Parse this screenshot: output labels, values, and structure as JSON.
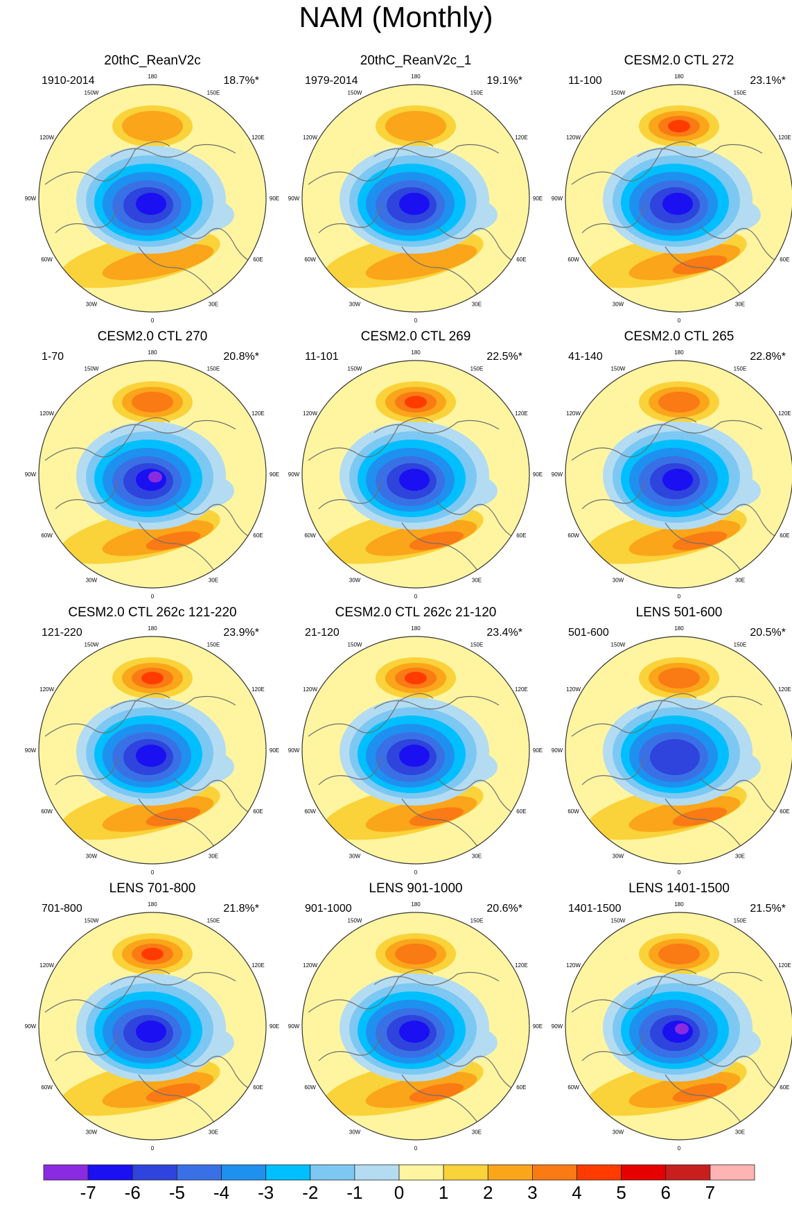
{
  "figure": {
    "title": "NAM (Monthly)",
    "colors": {
      "yellow": "#fff5a0",
      "pale_blue": "#b3dcf2",
      "coast": "#6e6e6e",
      "frame": "#333333"
    },
    "longitude_labels": [
      "180",
      "150E",
      "120E",
      "90E",
      "60E",
      "30E",
      "0",
      "30W",
      "60W",
      "90W",
      "120W",
      "150W"
    ],
    "colorbar": {
      "ticks": [
        "-7",
        "-6",
        "-5",
        "-4",
        "-3",
        "-2",
        "-1",
        "0",
        "1",
        "2",
        "3",
        "4",
        "5",
        "6",
        "7"
      ],
      "colors": [
        "#8a2be2",
        "#1a10f2",
        "#2e44dc",
        "#3a70e6",
        "#1e90f0",
        "#00bfff",
        "#7cc8f2",
        "#b3dcf2",
        "#fff5a0",
        "#fad23a",
        "#faa51a",
        "#fa7a14",
        "#ff3b00",
        "#e60000",
        "#c81e1e",
        "#ffb4b4"
      ]
    },
    "panels": [
      {
        "title": "20thC_ReanV2c",
        "period": "1910-2014",
        "variance": "18.7%*",
        "pos": 2,
        "neg": 6
      },
      {
        "title": "20thC_ReanV2c_1",
        "period": "1979-2014",
        "variance": "19.1%*",
        "pos": 2,
        "neg": 6
      },
      {
        "title": "CESM2.0 CTL 272",
        "period": "11-100",
        "variance": "23.1%*",
        "pos": 4,
        "neg": 6
      },
      {
        "title": "CESM2.0 CTL 270",
        "period": "1-70",
        "variance": "20.8%*",
        "pos": 3,
        "neg": 7
      },
      {
        "title": "CESM2.0 CTL 269",
        "period": "11-101",
        "variance": "22.5%*",
        "pos": 4,
        "neg": 6
      },
      {
        "title": "CESM2.0 CTL 265",
        "period": "41-140",
        "variance": "22.8%*",
        "pos": 3,
        "neg": 6
      },
      {
        "title": "CESM2.0 CTL 262c 121-220",
        "period": "121-220",
        "variance": "23.9%*",
        "pos": 4,
        "neg": 6
      },
      {
        "title": "CESM2.0 CTL 262c 21-120",
        "period": "21-120",
        "variance": "23.4%*",
        "pos": 4,
        "neg": 6
      },
      {
        "title": "LENS 501-600",
        "period": "501-600",
        "variance": "20.5%*",
        "pos": 3,
        "neg": 5
      },
      {
        "title": "LENS 701-800",
        "period": "701-800",
        "variance": "21.8%*",
        "pos": 4,
        "neg": 6
      },
      {
        "title": "LENS 901-1000",
        "period": "901-1000",
        "variance": "20.6%*",
        "pos": 3,
        "neg": 6
      },
      {
        "title": "LENS 1401-1500",
        "period": "1401-1500",
        "variance": "21.5%*",
        "pos": 3,
        "neg": 7
      }
    ]
  }
}
